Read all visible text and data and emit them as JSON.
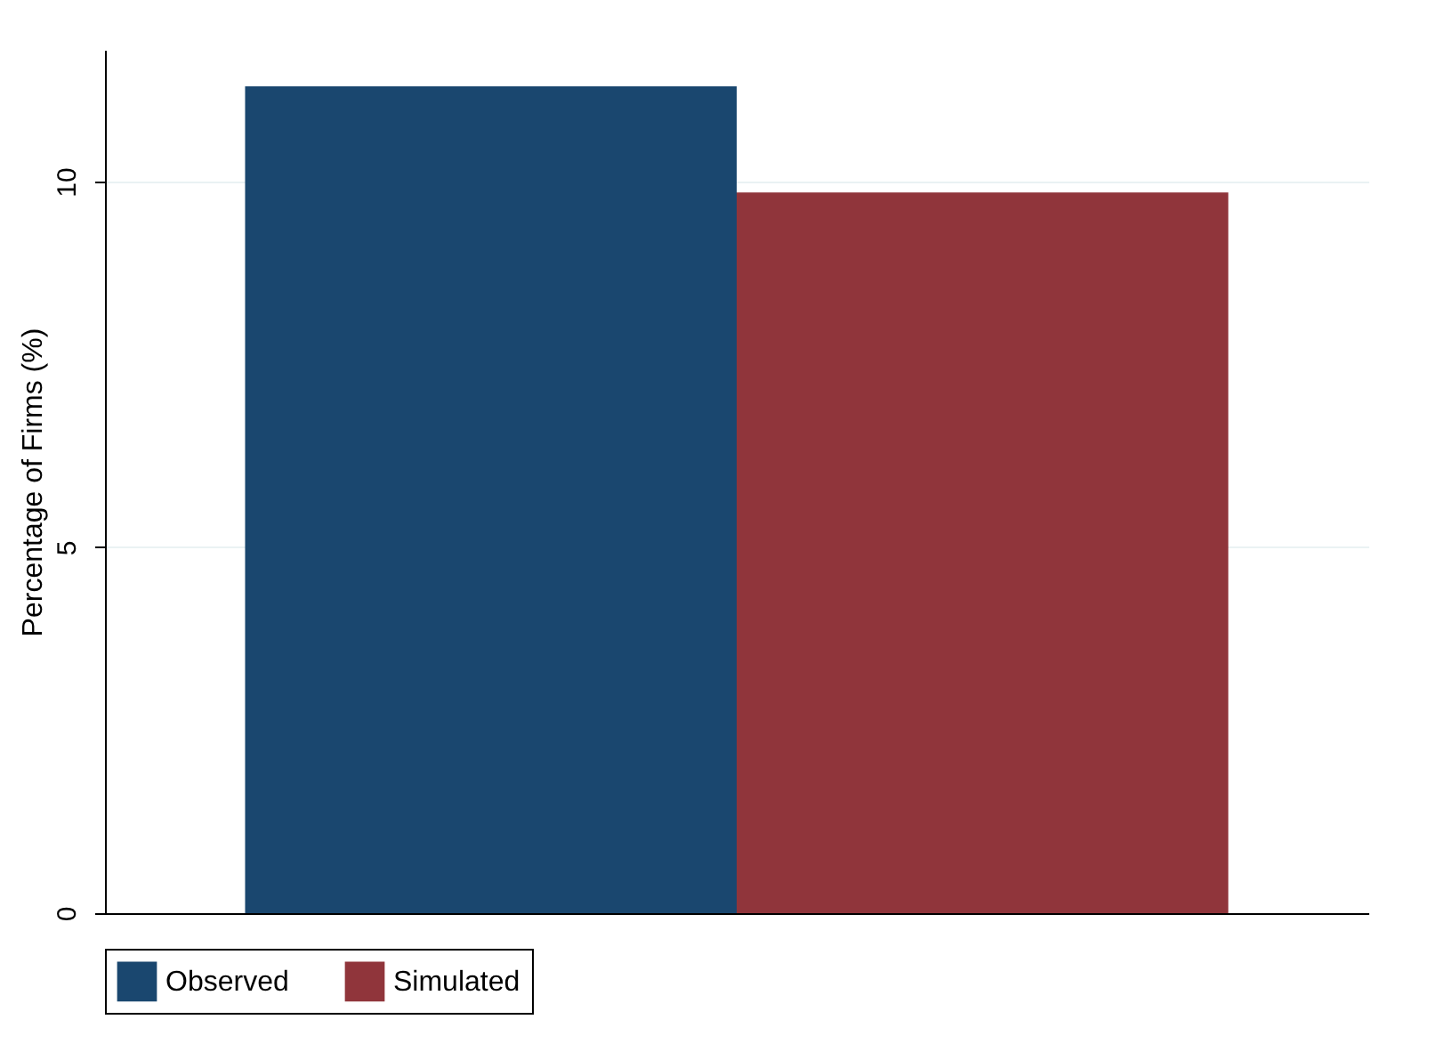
{
  "chart_data": {
    "type": "bar",
    "ylabel": "Percentage of Firms (%)",
    "categories": [
      null,
      null
    ],
    "series": [
      {
        "name": "Observed",
        "color": "#1a476f",
        "values": [
          11.3,
          null
        ]
      },
      {
        "name": "Simulated",
        "color": "#90353b",
        "values": [
          null,
          9.85
        ]
      }
    ],
    "ylim": [
      0,
      11.8
    ],
    "yticks": [
      0,
      5,
      10
    ],
    "grid": "y",
    "legend": "bottom"
  }
}
